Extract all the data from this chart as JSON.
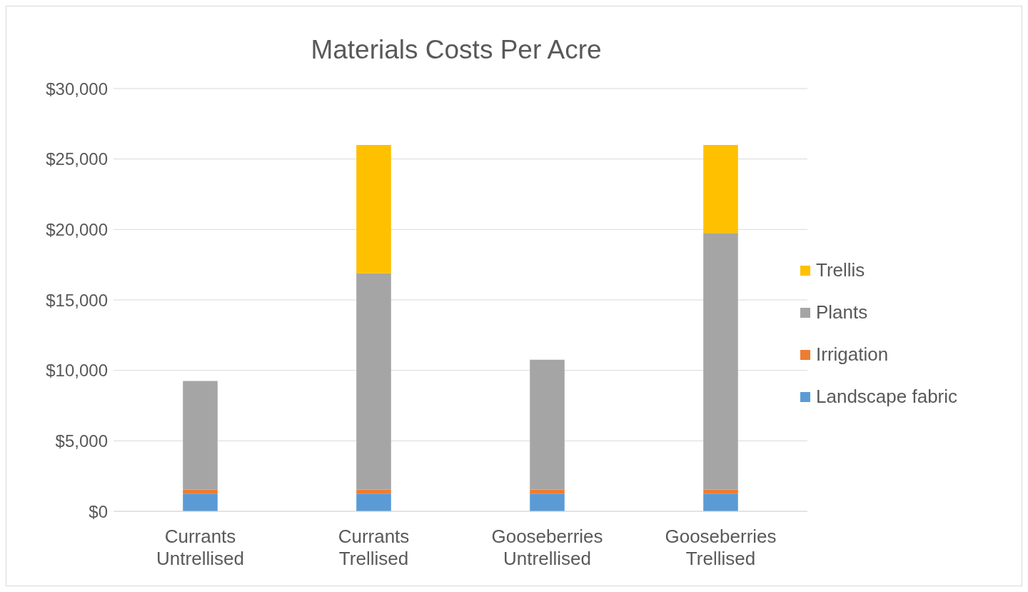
{
  "chart_data": {
    "type": "bar",
    "title": "Materials Costs Per Acre",
    "categories": [
      "Currants\nUntrellised",
      "Currants\nTrellised",
      "Gooseberries\nUntrellised",
      "Gooseberries\nTrellised"
    ],
    "stacked": true,
    "series": [
      {
        "name": "Landscape fabric",
        "color": "#5b9bd5",
        "values": [
          1250,
          1250,
          1250,
          1250
        ]
      },
      {
        "name": "Irrigation",
        "color": "#ed7d31",
        "values": [
          300,
          300,
          300,
          300
        ]
      },
      {
        "name": "Plants",
        "color": "#a5a5a5",
        "values": [
          7700,
          15350,
          9200,
          18200
        ]
      },
      {
        "name": "Trellis",
        "color": "#ffc000",
        "values": [
          null,
          9100,
          null,
          6250
        ]
      }
    ],
    "ylim": [
      0,
      30000
    ],
    "yticks": [
      {
        "value": 0,
        "label": "$0"
      },
      {
        "value": 5000,
        "label": "$5,000"
      },
      {
        "value": 10000,
        "label": "$10,000"
      },
      {
        "value": 15000,
        "label": "$15,000"
      },
      {
        "value": 20000,
        "label": "$20,000"
      },
      {
        "value": 25000,
        "label": "$25,000"
      },
      {
        "value": 30000,
        "label": "$30,000"
      }
    ],
    "grid": "y",
    "legend": "right"
  }
}
